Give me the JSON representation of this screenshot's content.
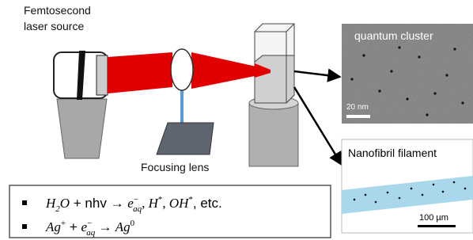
{
  "labels": {
    "source": [
      "Femtosecond",
      "laser source"
    ],
    "lens": "Focusing lens"
  },
  "panels": [
    {
      "title": "quantum cluster",
      "scale": "20 nm"
    },
    {
      "title": "Nanofibril filament",
      "scale": "100 µm"
    }
  ],
  "equations": [
    [
      "H",
      "2",
      "O",
      " + nhv → ",
      "e",
      "−",
      "aq",
      ", ",
      "H",
      "*",
      ", ",
      "OH",
      "*",
      ", etc."
    ],
    [
      "Ag",
      "+",
      " + ",
      "e",
      "−",
      "aq",
      "  → ",
      "Ag",
      "0"
    ]
  ]
}
